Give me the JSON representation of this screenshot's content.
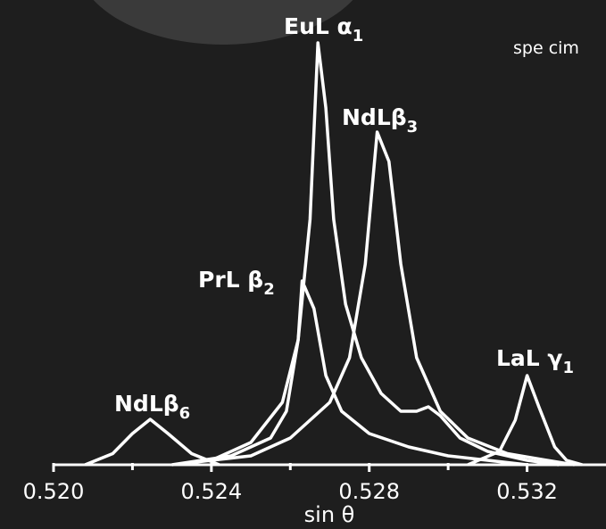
{
  "chart_data": {
    "type": "line",
    "x_label": "sin θ",
    "annotation": "spe cim",
    "xlim": [
      0.52,
      0.534
    ],
    "ylim": [
      0,
      100
    ],
    "xticks": [
      {
        "value": 0.52,
        "label": "0.520"
      },
      {
        "value": 0.524,
        "label": "0.524"
      },
      {
        "value": 0.528,
        "label": "0.528"
      },
      {
        "value": 0.532,
        "label": "0.532"
      }
    ],
    "xminor_ticks": [
      0.522,
      0.526,
      0.53
    ],
    "series": [
      {
        "name": "NdLβ",
        "subscript": "6",
        "color": "#ffffff",
        "x": [
          0.5208,
          0.5215,
          0.522,
          0.52245,
          0.5229,
          0.5235,
          0.5242
        ],
        "values": [
          0,
          2.5,
          7,
          10.2,
          7,
          2.5,
          0
        ]
      },
      {
        "name": "PrL β",
        "subscript": "2",
        "color": "#ffffff",
        "x": [
          0.523,
          0.5245,
          0.5255,
          0.5259,
          0.5262,
          0.5263,
          0.5266,
          0.5269,
          0.5273,
          0.528,
          0.529,
          0.53,
          0.531,
          0.532
        ],
        "values": [
          0,
          2,
          6,
          12,
          28,
          41.2,
          35,
          20,
          12,
          7,
          4,
          2,
          1,
          0
        ]
      },
      {
        "name": "EuL α",
        "subscript": "1",
        "color": "#ffffff",
        "x": [
          0.524,
          0.525,
          0.5258,
          0.5262,
          0.5265,
          0.5267,
          0.5269,
          0.5271,
          0.5274,
          0.5278,
          0.5283,
          0.5288,
          0.5292,
          0.5295,
          0.5298,
          0.5303,
          0.531,
          0.532,
          0.5328
        ],
        "values": [
          1,
          5,
          14,
          28,
          55,
          94.6,
          80,
          55,
          36,
          24,
          16,
          12,
          12,
          13,
          11,
          6,
          3,
          1,
          0
        ]
      },
      {
        "name": "NdLβ",
        "subscript": "3",
        "color": "#ffffff",
        "x": [
          0.5235,
          0.525,
          0.526,
          0.527,
          0.5275,
          0.5279,
          0.5282,
          0.5285,
          0.5288,
          0.5292,
          0.5298,
          0.5305,
          0.5315,
          0.5325,
          0.5332
        ],
        "values": [
          0.5,
          2,
          6,
          14,
          24,
          45,
          74.6,
          68,
          45,
          24,
          12,
          6,
          2.5,
          1,
          0
        ]
      },
      {
        "name": "LaL γ",
        "subscript": "1",
        "color": "#ffffff",
        "x": [
          0.5305,
          0.5313,
          0.5317,
          0.532,
          0.5323,
          0.5327,
          0.533,
          0.5334
        ],
        "values": [
          0,
          3,
          10,
          20,
          13,
          4,
          1,
          0
        ]
      }
    ]
  }
}
